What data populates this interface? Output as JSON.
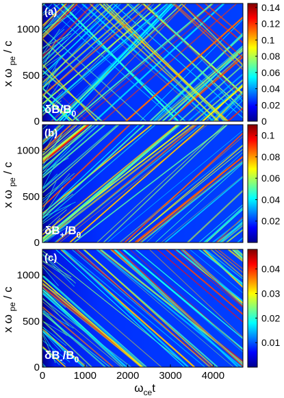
{
  "colors": {
    "colormap": [
      "#00008f",
      "#0000ff",
      "#0080ff",
      "#00ffff",
      "#80ff80",
      "#ffff00",
      "#ff8000",
      "#ff0000",
      "#800000"
    ],
    "background": "#0a2fd8"
  },
  "chart_data": [
    {
      "type": "heatmap",
      "panel_label": "(a)",
      "field_label": "δB/B",
      "field_label_sub": "0",
      "ylabel": "x ω",
      "ylabel_sub": "pe",
      "ylabel_tail": "/ c",
      "xlim": [
        0,
        4700
      ],
      "ylim": [
        0,
        1280
      ],
      "y_ticks": [
        0,
        500,
        1000
      ],
      "x_ticks": [],
      "colorbar": {
        "range": [
          0,
          0.145
        ],
        "ticks": [
          "0",
          "0.02",
          "0.04",
          "0.06",
          "0.08",
          "0.1",
          "0.12",
          "0.14"
        ],
        "values": [
          0,
          0.02,
          0.04,
          0.06,
          0.08,
          0.1,
          0.12,
          0.14
        ]
      }
    },
    {
      "type": "heatmap",
      "panel_label": "(b)",
      "field_label": "δB",
      "field_label_sub": "+",
      "field_label_tail": "/B",
      "field_label_tail_sub": "0",
      "ylabel": "x ω",
      "ylabel_sub": "pe",
      "ylabel_tail": "/ c",
      "xlim": [
        0,
        4700
      ],
      "ylim": [
        0,
        1280
      ],
      "y_ticks": [
        0,
        500,
        1000
      ],
      "x_ticks": [],
      "colorbar": {
        "range": [
          0,
          0.11
        ],
        "ticks": [
          "0.02",
          "0.04",
          "0.06",
          "0.08",
          "0.1"
        ],
        "values": [
          0.02,
          0.04,
          0.06,
          0.08,
          0.1
        ]
      }
    },
    {
      "type": "heatmap",
      "panel_label": "(c)",
      "field_label": "δB",
      "field_label_sub": "-",
      "field_label_tail": "/B",
      "field_label_tail_sub": "0",
      "ylabel": "x ω",
      "ylabel_sub": "pe",
      "ylabel_tail": "/ c",
      "xlabel": "ω",
      "xlabel_sub": "ce",
      "xlabel_tail": "t",
      "xlim": [
        0,
        4700
      ],
      "ylim": [
        0,
        1280
      ],
      "y_ticks": [
        0,
        500,
        1000
      ],
      "x_ticks": [
        0,
        1000,
        2000,
        3000,
        4000
      ],
      "x_tick_labels": [
        "0",
        "1000",
        "2000",
        "3000",
        "4000"
      ],
      "colorbar": {
        "range": [
          0,
          0.048
        ],
        "ticks": [
          "0.01",
          "0.02",
          "0.03",
          "0.04"
        ],
        "values": [
          0.01,
          0.02,
          0.03,
          0.04
        ]
      }
    }
  ]
}
